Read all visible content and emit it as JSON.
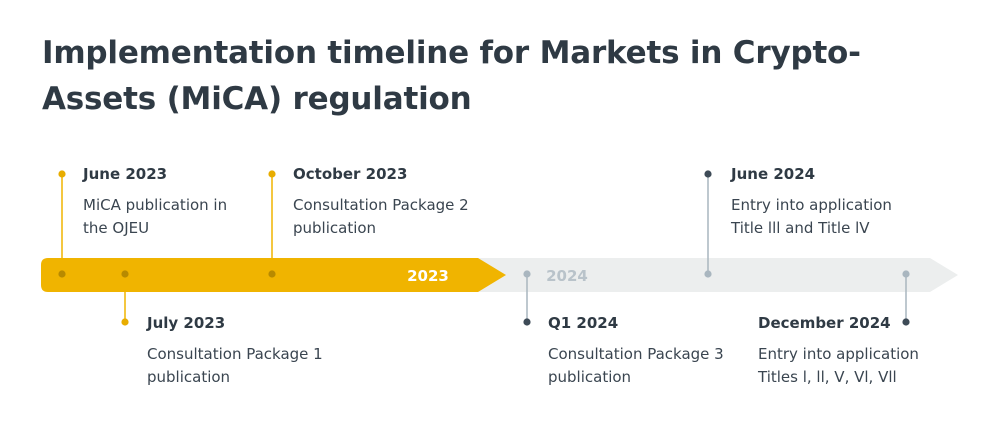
{
  "title": "Implementation timeline for Markets in Crypto-Assets (MiCA) regulation",
  "colors": {
    "bar_2023": "#f0b400",
    "bar_2024": "#eceeee",
    "dot_2023": "#e8ad00",
    "dot_2024": "#3e4b57",
    "line_2024": "#a9b6bf",
    "year_2023_text": "#ffffff",
    "year_2024_text": "#b9c3ca"
  },
  "years": [
    {
      "label": "2023"
    },
    {
      "label": "2024"
    }
  ],
  "events": [
    {
      "date": "June 2023",
      "desc": "MiCA publication in the OJEU",
      "year": "2023",
      "side": "top"
    },
    {
      "date": "July 2023",
      "desc": "Consultation Package 1 publication",
      "year": "2023",
      "side": "bottom"
    },
    {
      "date": "October 2023",
      "desc": "Consultation Package 2 publication",
      "year": "2023",
      "side": "top"
    },
    {
      "date": "Q1 2024",
      "desc": "Consultation Package 3 publication",
      "year": "2024",
      "side": "bottom"
    },
    {
      "date": "June 2024",
      "desc": "Entry into application Title lll and Title lV",
      "year": "2024",
      "side": "top"
    },
    {
      "date": "December 2024",
      "desc": "Entry into application Titles l, ll, V, Vl, Vll",
      "year": "2024",
      "side": "bottom"
    }
  ]
}
